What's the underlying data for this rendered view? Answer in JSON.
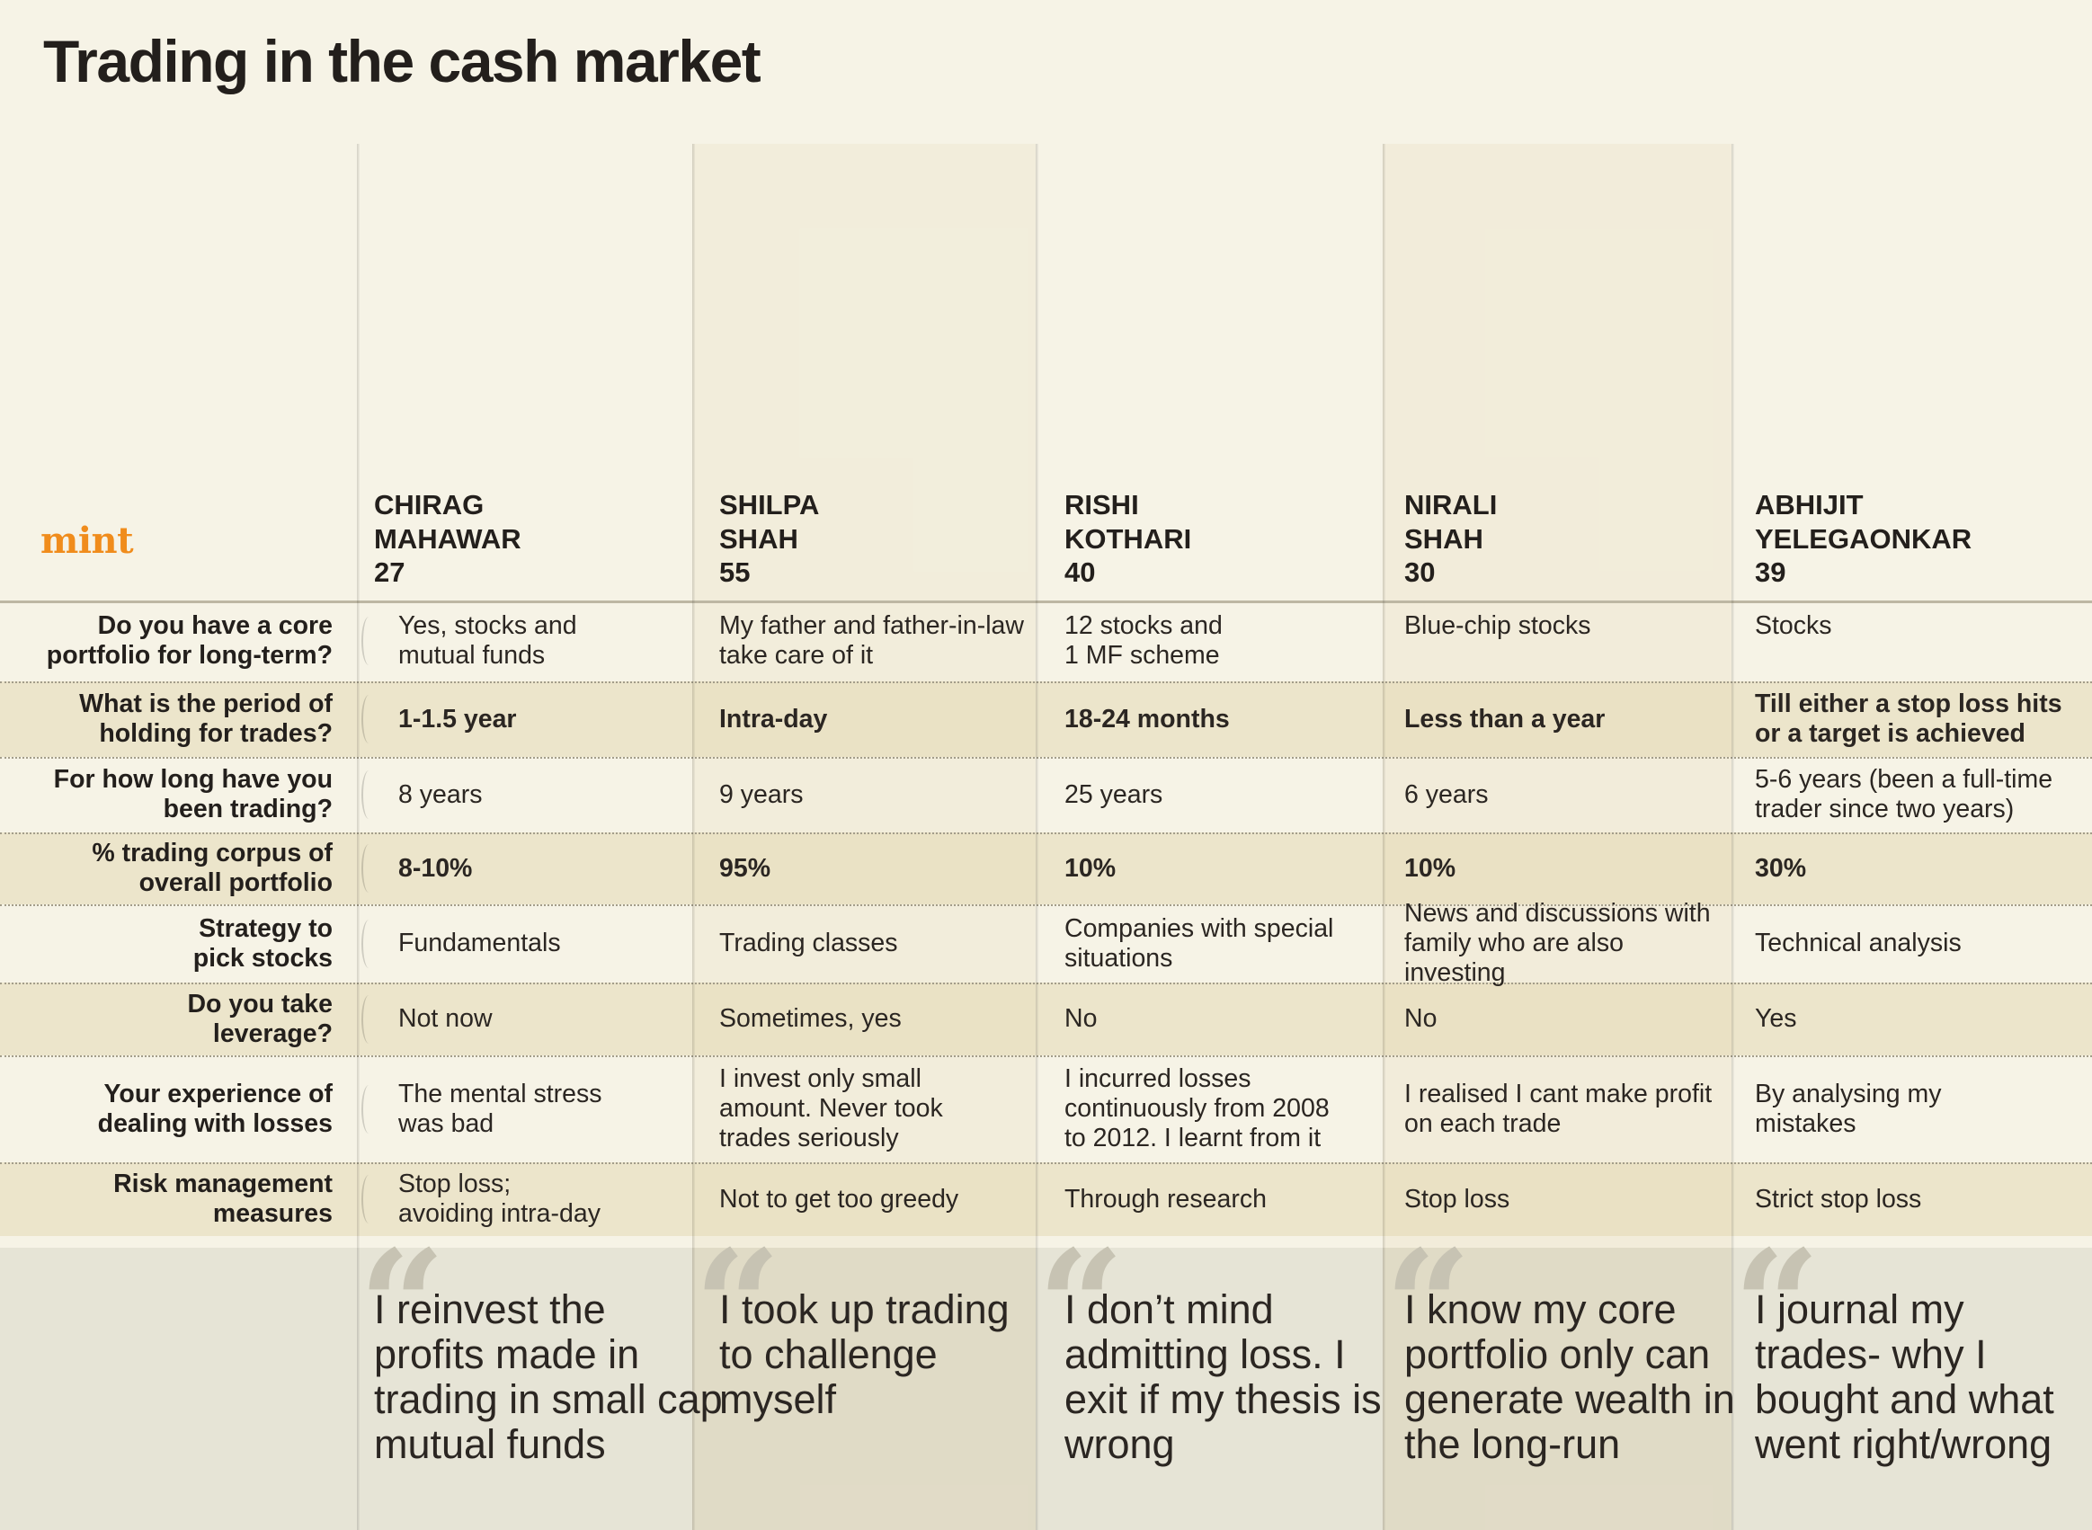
{
  "title": "Trading in the cash market",
  "brand": "mint",
  "colors": {
    "accent": "#f08c1c",
    "text": "#231f1c",
    "background": "#f6f3e6",
    "row_band": "#eee6c9",
    "quote_band": "#e6e4d6"
  },
  "chart_data": {
    "type": "table",
    "title": "Trading in the cash market",
    "columns": [
      {
        "first": "CHIRAG",
        "last": "MAHAWAR",
        "age": "27"
      },
      {
        "first": "SHILPA",
        "last": "SHAH",
        "age": "55"
      },
      {
        "first": "RISHI",
        "last": "KOTHARI",
        "age": "40"
      },
      {
        "first": "NIRALI",
        "last": "SHAH",
        "age": "30"
      },
      {
        "first": "ABHIJIT",
        "last": "YELEGAONKAR",
        "age": "39"
      }
    ],
    "rows": [
      {
        "question": [
          "Do you have a core",
          "portfolio for long-term?"
        ],
        "bold": false,
        "answers": [
          [
            "Yes, stocks and",
            "mutual funds"
          ],
          [
            "My father and father-in-law",
            "take care of it"
          ],
          [
            "12 stocks and",
            "1 MF scheme"
          ],
          [
            "Blue-chip stocks"
          ],
          [
            "Stocks"
          ]
        ]
      },
      {
        "question": [
          "What is the period of",
          "holding for trades?"
        ],
        "bold": true,
        "answers": [
          [
            "1-1.5 year"
          ],
          [
            "Intra-day"
          ],
          [
            "18-24 months"
          ],
          [
            "Less than a year"
          ],
          [
            "Till either a stop loss hits",
            "or a target is achieved"
          ]
        ]
      },
      {
        "question": [
          "For how long have you",
          "been trading?"
        ],
        "bold": false,
        "answers": [
          [
            "8 years"
          ],
          [
            "9 years"
          ],
          [
            "25 years"
          ],
          [
            "6 years"
          ],
          [
            "5-6 years (been a full-time",
            "trader since two years)"
          ]
        ]
      },
      {
        "question": [
          "% trading corpus of",
          "overall portfolio"
        ],
        "bold": true,
        "answers": [
          [
            "8-10%"
          ],
          [
            "95%"
          ],
          [
            "10%"
          ],
          [
            "10%"
          ],
          [
            "30%"
          ]
        ]
      },
      {
        "question": [
          "Strategy to",
          "pick stocks"
        ],
        "bold": false,
        "answers": [
          [
            "Fundamentals"
          ],
          [
            "Trading classes"
          ],
          [
            "Companies with special",
            "situations"
          ],
          [
            "News and discussions with",
            "family who are also investing"
          ],
          [
            "Technical analysis"
          ]
        ]
      },
      {
        "question": [
          "Do you take",
          "leverage?"
        ],
        "bold": false,
        "answers": [
          [
            "Not now"
          ],
          [
            "Sometimes, yes"
          ],
          [
            "No"
          ],
          [
            "No"
          ],
          [
            "Yes"
          ]
        ]
      },
      {
        "question": [
          "Your experience of",
          "dealing with losses"
        ],
        "bold": false,
        "answers": [
          [
            "The mental stress",
            "was bad"
          ],
          [
            "I invest only small",
            "amount. Never took",
            "trades seriously"
          ],
          [
            "I incurred losses",
            "continuously from 2008",
            "to 2012. I learnt from it"
          ],
          [
            "I realised I cant make profit",
            "on each trade"
          ],
          [
            "By analysing my",
            "mistakes"
          ]
        ]
      },
      {
        "question": [
          "Risk management",
          "measures"
        ],
        "bold": false,
        "answers": [
          [
            "Stop loss;",
            "avoiding intra-day"
          ],
          [
            "Not to get too greedy"
          ],
          [
            "Through research"
          ],
          [
            "Stop loss"
          ],
          [
            "Strict stop loss"
          ]
        ]
      }
    ],
    "quotes": [
      [
        "I reinvest the",
        "profits made in",
        "trading in small cap",
        "mutual funds"
      ],
      [
        "I took up trading",
        "to challenge",
        "myself"
      ],
      [
        "I don’t mind",
        "admitting loss. I",
        "exit if my thesis is",
        "wrong"
      ],
      [
        "I know my core",
        "portfolio only can",
        "generate wealth in",
        "the long-run"
      ],
      [
        "I journal my",
        "trades- why I",
        "bought and what",
        "went right/wrong"
      ]
    ]
  }
}
